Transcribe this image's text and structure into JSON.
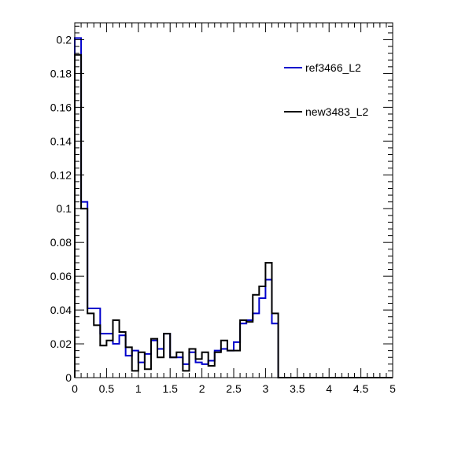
{
  "chart_data": {
    "type": "line",
    "title": "",
    "xlabel": "",
    "ylabel": "",
    "xlim": [
      0,
      5
    ],
    "ylim": [
      0,
      0.21
    ],
    "grid": false,
    "legend_position": "top-right",
    "x_ticks": [
      0,
      0.5,
      1,
      1.5,
      2,
      2.5,
      3,
      3.5,
      4,
      4.5,
      5
    ],
    "x_tick_labels": [
      "0",
      "0.5",
      "1",
      "1.5",
      "2",
      "2.5",
      "3",
      "3.5",
      "4",
      "4.5",
      "5"
    ],
    "y_ticks": [
      0,
      0.02,
      0.04,
      0.06,
      0.08,
      0.1,
      0.12,
      0.14,
      0.16,
      0.18,
      0.2
    ],
    "y_tick_labels": [
      "0",
      "0.02",
      "0.04",
      "0.06",
      "0.08",
      "0.1",
      "0.12",
      "0.14",
      "0.16",
      "0.18",
      "0.2"
    ],
    "bin_edges": [
      0,
      0.1,
      0.2,
      0.3,
      0.4,
      0.5,
      0.6,
      0.7,
      0.8,
      0.9,
      1.0,
      1.1,
      1.2,
      1.3,
      1.4,
      1.5,
      1.6,
      1.7,
      1.8,
      1.9,
      2.0,
      2.1,
      2.2,
      2.3,
      2.4,
      2.5,
      2.6,
      2.7,
      2.8,
      2.9,
      3.0,
      3.1,
      3.2,
      3.3,
      3.4,
      3.5,
      3.6,
      3.7,
      3.8,
      3.9,
      4.0,
      4.1,
      4.2,
      4.3,
      4.4,
      4.5,
      4.6,
      4.7,
      4.8,
      4.9,
      5.0
    ],
    "series": [
      {
        "name": "ref3466_L2",
        "color": "#0000cc",
        "values": [
          0.201,
          0.104,
          0.041,
          0.041,
          0.026,
          0.026,
          0.02,
          0.025,
          0.013,
          0.016,
          0.009,
          0.014,
          0.022,
          0.017,
          0.026,
          0.012,
          0.012,
          0.008,
          0.015,
          0.009,
          0.008,
          0.01,
          0.016,
          0.017,
          0.016,
          0.021,
          0.032,
          0.034,
          0.038,
          0.047,
          0.058,
          0.032,
          0,
          0,
          0,
          0,
          0,
          0,
          0,
          0,
          0,
          0,
          0,
          0,
          0,
          0,
          0,
          0,
          0,
          0
        ]
      },
      {
        "name": "new3483_L2",
        "color": "#000000",
        "values": [
          0.191,
          0.1,
          0.038,
          0.031,
          0.019,
          0.022,
          0.034,
          0.027,
          0.018,
          0.004,
          0.015,
          0.005,
          0.023,
          0.012,
          0.026,
          0.012,
          0.015,
          0.004,
          0.017,
          0.011,
          0.015,
          0.007,
          0.015,
          0.022,
          0.016,
          0.016,
          0.034,
          0.033,
          0.049,
          0.054,
          0.068,
          0.038,
          0,
          0,
          0,
          0,
          0,
          0,
          0,
          0,
          0,
          0,
          0,
          0,
          0,
          0,
          0,
          0,
          0,
          0
        ]
      }
    ]
  }
}
